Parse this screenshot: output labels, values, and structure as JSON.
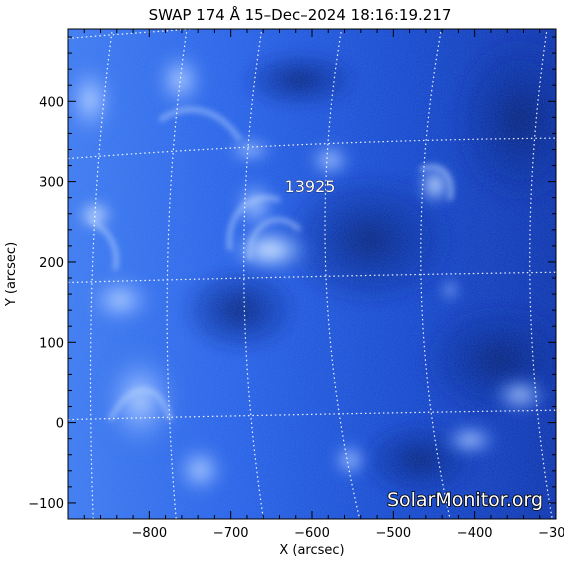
{
  "title": "SWAP 174 Å 15–Dec–2024 18:16:19.217",
  "xlabel": "X (arcsec)",
  "ylabel": "Y (arcsec)",
  "region_label": "13925",
  "watermark": "SolarMonitor.org",
  "colors": {
    "background": "#ffffff",
    "image_dark": "#001a7a",
    "image_mid": "#1f56e3",
    "image_light": "#9fc7ff",
    "axis": "#000000",
    "grid": "#ffffff"
  },
  "chart_data": {
    "type": "heatmap",
    "title": "SWAP 174 Å 15–Dec–2024 18:16:19.217",
    "xlabel": "X (arcsec)",
    "ylabel": "Y (arcsec)",
    "xlim": [
      -900,
      -300
    ],
    "ylim": [
      -120,
      490
    ],
    "x_ticks": [
      -800,
      -700,
      -600,
      -500,
      -400,
      -300
    ],
    "y_ticks": [
      -100,
      0,
      100,
      200,
      300,
      400
    ],
    "x_tick_labels": [
      "−800",
      "−700",
      "−600",
      "−500",
      "−400",
      "−300"
    ],
    "y_tick_labels": [
      "−100",
      "0",
      "100",
      "200",
      "300",
      "400"
    ],
    "grid": true,
    "annotations": [
      {
        "text": "13925",
        "x": -610,
        "y": 290
      }
    ]
  }
}
